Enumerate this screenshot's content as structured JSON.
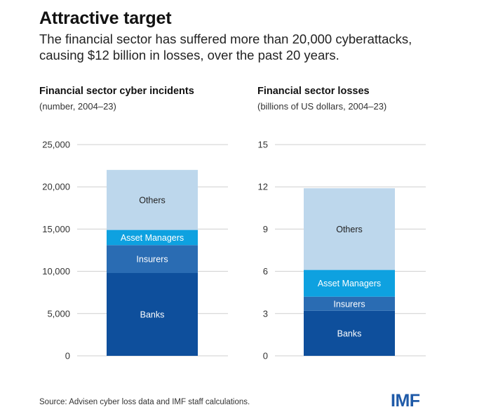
{
  "header": {
    "title": "Attractive target",
    "subtitle": "The financial sector has suffered more than 20,000 cyberattacks, causing $12 billion in losses, over the past 20 years."
  },
  "footer": {
    "source": "Source: Advisen cyber loss data and IMF staff calculations.",
    "logo": "IMF"
  },
  "colors": {
    "Banks": "#0e4f9c",
    "Insurers": "#2a6cb3",
    "Asset Managers": "#0ea1e0",
    "Others": "#bdd7ec",
    "grid": "#cfcfcf",
    "segment_label_light": "#ffffff",
    "segment_label_dark": "#222222"
  },
  "chart_data": [
    {
      "type": "bar",
      "stacked": true,
      "title": "Financial sector cyber incidents",
      "subtitle": "(number, 2004–23)",
      "ylim": [
        0,
        25000
      ],
      "yticks": [
        0,
        5000,
        10000,
        15000,
        20000,
        25000
      ],
      "ytick_labels": [
        "0",
        "5,000",
        "10,000",
        "15,000",
        "20,000",
        "25,000"
      ],
      "grid": true,
      "series": [
        {
          "name": "Banks",
          "values": [
            9800
          ]
        },
        {
          "name": "Insurers",
          "values": [
            3300
          ]
        },
        {
          "name": "Asset Managers",
          "values": [
            1800
          ]
        },
        {
          "name": "Others",
          "values": [
            7100
          ]
        }
      ]
    },
    {
      "type": "bar",
      "stacked": true,
      "title": "Financial sector losses",
      "subtitle": "(billions of US dollars, 2004–23)",
      "ylim": [
        0,
        15
      ],
      "yticks": [
        0,
        3,
        6,
        9,
        12,
        15
      ],
      "ytick_labels": [
        "0",
        "3",
        "6",
        "9",
        "12",
        "15"
      ],
      "grid": true,
      "series": [
        {
          "name": "Banks",
          "values": [
            3.2
          ]
        },
        {
          "name": "Insurers",
          "values": [
            1.0
          ]
        },
        {
          "name": "Asset Managers",
          "values": [
            1.9
          ]
        },
        {
          "name": "Others",
          "values": [
            5.8
          ]
        }
      ]
    }
  ]
}
